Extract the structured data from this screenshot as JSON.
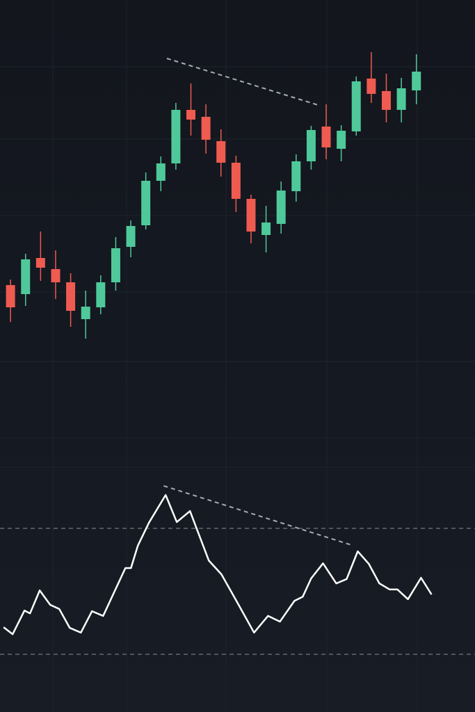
{
  "chart_data": [
    {
      "type": "candlestick",
      "xlim": [
        -0.7,
        30.9
      ],
      "ylim": [
        0,
        120
      ],
      "up_color": "#4fc99a",
      "down_color": "#ef5b50",
      "open": [
        38,
        35.4,
        45.8,
        42.6,
        38.8,
        28.2,
        31.6,
        38.8,
        49,
        55.2,
        68,
        73,
        88.4,
        86.4,
        79.4,
        73.2,
        62.8,
        52.4,
        55.6,
        65,
        73.6,
        83.6,
        77.2,
        82.2,
        97.4,
        93.8,
        88.4,
        94
      ],
      "high": [
        39.6,
        47,
        53.4,
        48,
        41.4,
        36.4,
        40.8,
        51.8,
        56.6,
        70.4,
        75,
        90.4,
        96,
        90,
        82.8,
        75.2,
        64,
        60.8,
        67.8,
        75.6,
        83.8,
        90,
        84,
        98,
        105,
        98.8,
        97.6,
        104.4
      ],
      "low": [
        27.4,
        32,
        39.2,
        34,
        26,
        22.6,
        29.6,
        36.4,
        46,
        54,
        65,
        71.2,
        81,
        75.8,
        69.2,
        59,
        50,
        47.4,
        52.8,
        62,
        71.2,
        74.2,
        73.6,
        81,
        90.4,
        84.8,
        84.8,
        90
      ],
      "close": [
        31.6,
        45.4,
        43,
        38.8,
        30.6,
        31.8,
        38.8,
        48.6,
        55,
        68,
        73,
        88.4,
        85.6,
        79.8,
        73.2,
        62.8,
        53.4,
        56,
        65.2,
        73.6,
        82.6,
        77.6,
        82.4,
        96.6,
        93,
        88.4,
        94.6,
        99.4
      ],
      "trendline": {
        "x": [
          10.4,
          20.6
        ],
        "values": [
          103.2,
          89.6
        ],
        "color": "#a8adb5"
      }
    },
    {
      "type": "line",
      "xlim": [
        -0.7,
        30.9
      ],
      "ylim": [
        15,
        100
      ],
      "color": "#ffffff",
      "x": [
        -0.46,
        0.14,
        0.93,
        1.3,
        1.94,
        2.64,
        3.24,
        3.94,
        4.68,
        5.42,
        6.16,
        7.64,
        8.01,
        8.47,
        9.21,
        10.32,
        11.06,
        11.94,
        13.19,
        14.03,
        15.05,
        16.2,
        17.13,
        17.92,
        18.89,
        19.44,
        20,
        20.79,
        21.67,
        22.36,
        23.1,
        23.84,
        24.54,
        25.23,
        25.74,
        26.44,
        27.31,
        28.01
      ],
      "values": [
        38.6,
        36.4,
        43.9,
        43,
        50.3,
        45.7,
        44.4,
        38.4,
        36.9,
        43.7,
        42.2,
        57.4,
        57.4,
        64.5,
        71.8,
        80.6,
        72,
        75.5,
        59.8,
        55.4,
        46.8,
        36.9,
        42.2,
        40.4,
        47,
        48.3,
        54.1,
        58.9,
        52.5,
        53.9,
        62.7,
        58.7,
        52.5,
        50.6,
        50.6,
        47.5,
        54.3,
        49
      ],
      "levels": [
        70,
        30
      ],
      "trendline": {
        "x": [
          10.19,
          22.69
        ],
        "values": [
          83.5,
          64.7
        ],
        "color": "#a8adb5"
      }
    }
  ]
}
